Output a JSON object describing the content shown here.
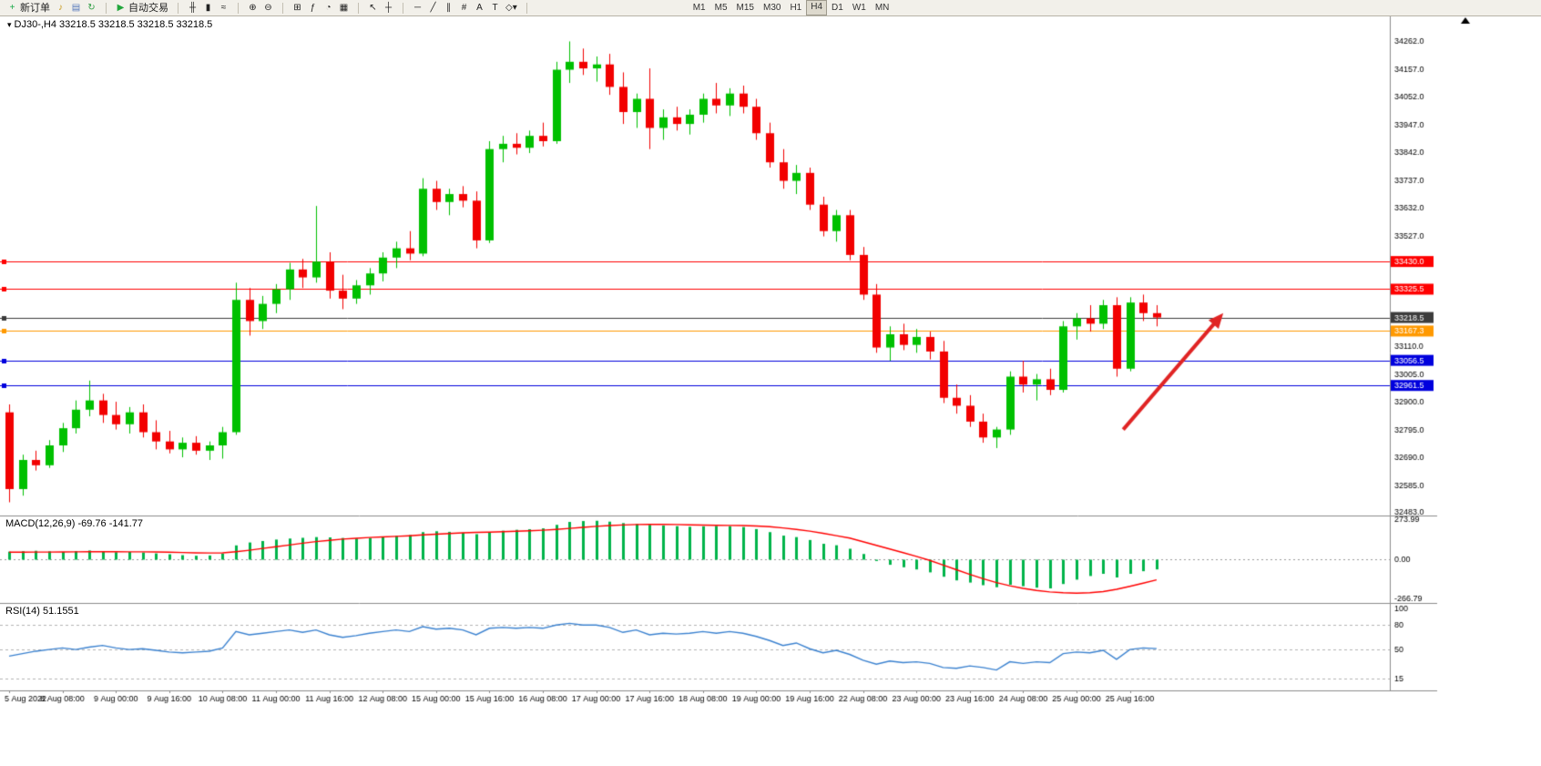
{
  "toolbar": {
    "groups": [
      {
        "items": [
          {
            "name": "new-order-button",
            "glyph": "+",
            "glyph_color": "#18a848",
            "label": "新订单"
          },
          {
            "name": "sound-alert-icon",
            "glyph": "♪",
            "glyph_color": "#c79818"
          },
          {
            "name": "profiles-icon",
            "glyph": "▤",
            "glyph_color": "#5577bb"
          },
          {
            "name": "refresh-icon",
            "glyph": "↻",
            "glyph_color": "#2f9e44"
          }
        ]
      },
      {
        "items": [
          {
            "name": "auto-trading-button",
            "glyph": "▶",
            "glyph_color": "#22a63c",
            "label": "自动交易"
          }
        ]
      },
      {
        "items": [
          {
            "name": "bar-chart-icon",
            "glyph": "╫"
          },
          {
            "name": "candlestick-chart-icon",
            "glyph": "▮"
          },
          {
            "name": "line-chart-icon",
            "glyph": "≈"
          }
        ]
      },
      {
        "items": [
          {
            "name": "zoom-in-icon",
            "glyph": "⊕"
          },
          {
            "name": "zoom-out-icon",
            "glyph": "⊖"
          }
        ]
      },
      {
        "items": [
          {
            "name": "tile-windows-icon",
            "glyph": "⊞"
          },
          {
            "name": "indicators-icon",
            "glyph": "ƒ"
          },
          {
            "name": "period-icon",
            "glyph": "◔"
          },
          {
            "name": "templates-icon",
            "glyph": "▦"
          }
        ]
      },
      {
        "items": [
          {
            "name": "cursor-icon",
            "glyph": "↖"
          },
          {
            "name": "crosshair-icon",
            "glyph": "┼"
          }
        ]
      },
      {
        "items": [
          {
            "name": "hline-tool-icon",
            "glyph": "─"
          },
          {
            "name": "trendline-tool-icon",
            "glyph": "╱"
          },
          {
            "name": "channel-tool-icon",
            "glyph": "∥"
          },
          {
            "name": "fibonacci-tool-icon",
            "glyph": "#"
          },
          {
            "name": "text-tool-icon",
            "glyph": "A"
          },
          {
            "name": "label-tool-icon",
            "glyph": "T"
          },
          {
            "name": "shapes-tool-icon",
            "glyph": "◇▾"
          }
        ]
      },
      {
        "timeframes": true,
        "items": [
          {
            "name": "tf-m1-button",
            "label": "M1"
          },
          {
            "name": "tf-m5-button",
            "label": "M5"
          },
          {
            "name": "tf-m15-button",
            "label": "M15"
          },
          {
            "name": "tf-m30-button",
            "label": "M30"
          },
          {
            "name": "tf-h1-button",
            "label": "H1"
          },
          {
            "name": "tf-h4-button",
            "label": "H4",
            "active": true
          },
          {
            "name": "tf-d1-button",
            "label": "D1"
          },
          {
            "name": "tf-w1-button",
            "label": "W1"
          },
          {
            "name": "tf-mn-button",
            "label": "MN"
          }
        ]
      }
    ]
  },
  "chart": {
    "title": "DJ30-,H4 33218.5 33218.5 33218.5 33218.5",
    "symbol": "DJ30-",
    "period": "H4"
  },
  "indicators": {
    "macd_label": "MACD(12,26,9) -69.76 -141.77",
    "rsi_label": "RSI(14) 51.1551"
  },
  "chart_data": {
    "type": "candlestick",
    "symbol": "DJ30-",
    "period": "H4",
    "price_range": [
      32470,
      34360
    ],
    "y_axis_labels": [
      34262.0,
      34157.0,
      34052.0,
      33947.0,
      33842.0,
      33737.0,
      33632.0,
      33527.0,
      33110.0,
      33005.0,
      32900.0,
      32795.0,
      32690.0,
      32585.0,
      32483.0
    ],
    "x_labels": [
      "5 Aug 2022",
      "8 Aug 08:00",
      "9 Aug 00:00",
      "9 Aug 16:00",
      "10 Aug 08:00",
      "11 Aug 00:00",
      "11 Aug 16:00",
      "12 Aug 08:00",
      "15 Aug 00:00",
      "15 Aug 16:00",
      "16 Aug 08:00",
      "17 Aug 00:00",
      "17 Aug 16:00",
      "18 Aug 08:00",
      "19 Aug 00:00",
      "19 Aug 16:00",
      "22 Aug 08:00",
      "23 Aug 00:00",
      "23 Aug 16:00",
      "24 Aug 08:00",
      "25 Aug 00:00",
      "25 Aug 16:00"
    ],
    "current_price": 33218.5,
    "hlines": [
      {
        "price": 33430.0,
        "label": "33430.0",
        "color": "#ff0000"
      },
      {
        "price": 33325.5,
        "label": "33325.5",
        "color": "#ff0000"
      },
      {
        "price": 33218.5,
        "label": "33218.5",
        "color": "#3c3c3c"
      },
      {
        "price": 33167.3,
        "label": "33167.3",
        "color": "#ff9900"
      },
      {
        "price": 33056.5,
        "label": "33056.5",
        "color": "#0000dd"
      },
      {
        "price": 32961.5,
        "label": "32961.5",
        "color": "#0000dd"
      }
    ],
    "colors": {
      "up": "#00c000",
      "down": "#f20000",
      "macd_histogram": "#00b44a",
      "macd_signal": "#ff0000",
      "rsi_line": "#3b82d0"
    },
    "candles_ohlc": [
      [
        32860,
        32890,
        32520,
        32570
      ],
      [
        32570,
        32700,
        32545,
        32680
      ],
      [
        32680,
        32715,
        32640,
        32660
      ],
      [
        32660,
        32755,
        32650,
        32735
      ],
      [
        32735,
        32820,
        32710,
        32800
      ],
      [
        32800,
        32905,
        32780,
        32870
      ],
      [
        32870,
        32980,
        32845,
        32905
      ],
      [
        32905,
        32930,
        32820,
        32850
      ],
      [
        32850,
        32900,
        32795,
        32815
      ],
      [
        32815,
        32880,
        32780,
        32860
      ],
      [
        32860,
        32890,
        32765,
        32785
      ],
      [
        32785,
        32830,
        32720,
        32750
      ],
      [
        32750,
        32790,
        32705,
        32720
      ],
      [
        32720,
        32765,
        32690,
        32745
      ],
      [
        32745,
        32770,
        32700,
        32715
      ],
      [
        32715,
        32750,
        32680,
        32735
      ],
      [
        32735,
        32805,
        32685,
        32785
      ],
      [
        32785,
        33350,
        32775,
        33285
      ],
      [
        33285,
        33330,
        33150,
        33205
      ],
      [
        33205,
        33300,
        33175,
        33270
      ],
      [
        33270,
        33345,
        33235,
        33325
      ],
      [
        33325,
        33425,
        33285,
        33400
      ],
      [
        33400,
        33440,
        33330,
        33370
      ],
      [
        33370,
        33640,
        33350,
        33430
      ],
      [
        33430,
        33465,
        33290,
        33320
      ],
      [
        33320,
        33380,
        33250,
        33290
      ],
      [
        33290,
        33360,
        33270,
        33340
      ],
      [
        33340,
        33405,
        33305,
        33385
      ],
      [
        33385,
        33465,
        33355,
        33445
      ],
      [
        33445,
        33505,
        33405,
        33480
      ],
      [
        33480,
        33545,
        33435,
        33460
      ],
      [
        33460,
        33745,
        33450,
        33705
      ],
      [
        33705,
        33735,
        33625,
        33655
      ],
      [
        33655,
        33705,
        33605,
        33685
      ],
      [
        33685,
        33715,
        33635,
        33660
      ],
      [
        33660,
        33695,
        33480,
        33510
      ],
      [
        33510,
        33885,
        33500,
        33855
      ],
      [
        33855,
        33905,
        33805,
        33875
      ],
      [
        33875,
        33915,
        33835,
        33860
      ],
      [
        33860,
        33925,
        33840,
        33905
      ],
      [
        33905,
        33955,
        33865,
        33885
      ],
      [
        33885,
        34185,
        33875,
        34155
      ],
      [
        34155,
        34262,
        34105,
        34185
      ],
      [
        34185,
        34235,
        34135,
        34160
      ],
      [
        34160,
        34205,
        34110,
        34175
      ],
      [
        34175,
        34215,
        34060,
        34090
      ],
      [
        34090,
        34145,
        33950,
        33995
      ],
      [
        33995,
        34065,
        33935,
        34045
      ],
      [
        34045,
        34160,
        33855,
        33935
      ],
      [
        33935,
        34005,
        33890,
        33975
      ],
      [
        33975,
        34015,
        33925,
        33950
      ],
      [
        33950,
        34005,
        33910,
        33985
      ],
      [
        33985,
        34065,
        33955,
        34045
      ],
      [
        34045,
        34105,
        33990,
        34020
      ],
      [
        34020,
        34085,
        33980,
        34065
      ],
      [
        34065,
        34095,
        33990,
        34015
      ],
      [
        34015,
        34045,
        33890,
        33915
      ],
      [
        33915,
        33955,
        33785,
        33805
      ],
      [
        33805,
        33855,
        33705,
        33735
      ],
      [
        33735,
        33795,
        33685,
        33765
      ],
      [
        33765,
        33785,
        33625,
        33645
      ],
      [
        33645,
        33675,
        33525,
        33545
      ],
      [
        33545,
        33625,
        33505,
        33605
      ],
      [
        33605,
        33625,
        33435,
        33455
      ],
      [
        33455,
        33485,
        33285,
        33305
      ],
      [
        33305,
        33345,
        33085,
        33105
      ],
      [
        33105,
        33185,
        33055,
        33155
      ],
      [
        33155,
        33195,
        33095,
        33115
      ],
      [
        33115,
        33175,
        33085,
        33145
      ],
      [
        33145,
        33165,
        33060,
        33090
      ],
      [
        33090,
        33130,
        32895,
        32915
      ],
      [
        32915,
        32965,
        32855,
        32885
      ],
      [
        32885,
        32925,
        32805,
        32825
      ],
      [
        32825,
        32855,
        32745,
        32765
      ],
      [
        32765,
        32805,
        32725,
        32795
      ],
      [
        32795,
        33015,
        32775,
        32995
      ],
      [
        32995,
        33055,
        32935,
        32965
      ],
      [
        32965,
        33005,
        32905,
        32985
      ],
      [
        32985,
        33025,
        32925,
        32945
      ],
      [
        32945,
        33205,
        32935,
        33185
      ],
      [
        33185,
        33235,
        33135,
        33215
      ],
      [
        33215,
        33265,
        33165,
        33195
      ],
      [
        33195,
        33285,
        33175,
        33265
      ],
      [
        33265,
        33295,
        32995,
        33025
      ],
      [
        33025,
        33295,
        33015,
        33275
      ],
      [
        33275,
        33305,
        33205,
        33235
      ],
      [
        33235,
        33265,
        33185,
        33218.5
      ]
    ],
    "macd": {
      "axis_labels": [
        "273.99",
        "0.00",
        "-266.79"
      ],
      "range": [
        -300,
        300
      ],
      "histogram": [
        52,
        55,
        58,
        54,
        50,
        56,
        60,
        52,
        48,
        50,
        46,
        40,
        34,
        28,
        24,
        26,
        38,
        95,
        115,
        125,
        135,
        142,
        147,
        152,
        150,
        146,
        142,
        146,
        152,
        160,
        166,
        186,
        192,
        188,
        182,
        172,
        186,
        196,
        202,
        206,
        212,
        236,
        256,
        262,
        264,
        258,
        248,
        242,
        236,
        231,
        227,
        223,
        226,
        229,
        227,
        221,
        207,
        186,
        162,
        152,
        132,
        106,
        96,
        72,
        36,
        -12,
        -38,
        -55,
        -70,
        -90,
        -120,
        -145,
        -160,
        -178,
        -192,
        -175,
        -185,
        -195,
        -200,
        -170,
        -140,
        -115,
        -100,
        -125,
        -100,
        -82,
        -69.76
      ],
      "signal": [
        48,
        48,
        49,
        49,
        50,
        51,
        52,
        52,
        52,
        51,
        51,
        50,
        48,
        46,
        44,
        43,
        44,
        52,
        62,
        74,
        86,
        98,
        110,
        121,
        130,
        138,
        144,
        149,
        153,
        157,
        161,
        167,
        172,
        177,
        181,
        184,
        186,
        189,
        192,
        195,
        199,
        205,
        212,
        219,
        226,
        231,
        235,
        238,
        239,
        239,
        238,
        236,
        234,
        233,
        232,
        231,
        228,
        223,
        215,
        205,
        193,
        178,
        162,
        145,
        120,
        95,
        70,
        45,
        20,
        -8,
        -40,
        -72,
        -104,
        -134,
        -160,
        -182,
        -200,
        -214,
        -224,
        -230,
        -233,
        -230,
        -222,
        -206,
        -186,
        -164,
        -141.77
      ]
    },
    "rsi": {
      "axis_labels": [
        "100",
        "80",
        "50",
        "15"
      ],
      "levels": [
        80,
        50,
        15
      ],
      "range": [
        0,
        107
      ],
      "values": [
        42,
        45,
        48,
        50,
        52,
        50,
        53,
        55,
        52,
        50,
        51,
        49,
        47,
        46,
        47,
        48,
        52,
        72,
        68,
        70,
        72,
        74,
        71,
        74,
        68,
        65,
        67,
        70,
        72,
        74,
        72,
        78,
        75,
        76,
        74,
        68,
        76,
        77,
        76,
        77,
        76,
        80,
        82,
        80,
        80,
        77,
        71,
        74,
        68,
        70,
        69,
        70,
        72,
        70,
        72,
        70,
        66,
        61,
        55,
        58,
        51,
        46,
        49,
        44,
        37,
        32,
        36,
        34,
        35,
        33,
        28,
        27,
        30,
        28,
        25,
        35,
        33,
        35,
        34,
        45,
        47,
        46,
        49,
        38,
        50,
        52,
        51.1551
      ]
    },
    "arrow": {
      "x1_index": 83.5,
      "price1": 32795,
      "x2_index": 91,
      "price2": 33235,
      "color": "#e02424"
    }
  }
}
